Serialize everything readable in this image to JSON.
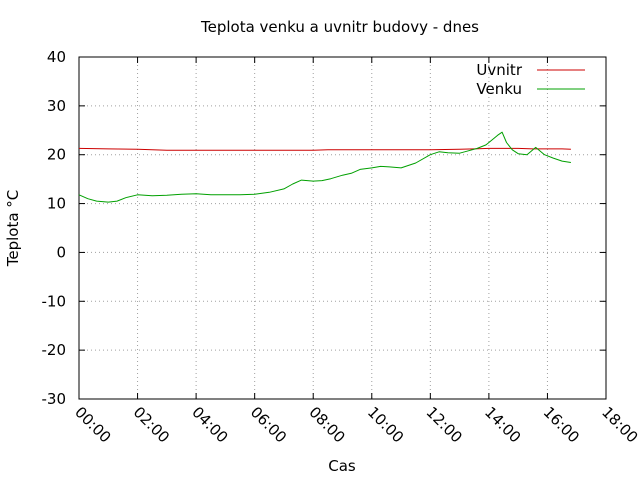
{
  "chart_data": {
    "type": "line",
    "title": "Teplota venku a uvnitr budovy - dnes",
    "xlabel": "Cas",
    "ylabel": "Teplota °C",
    "x_unit": "hours",
    "xlim": [
      0,
      18
    ],
    "ylim": [
      -30,
      40
    ],
    "x_ticks": [
      0,
      2,
      4,
      6,
      8,
      10,
      12,
      14,
      16,
      18
    ],
    "x_tick_labels": [
      "00:00",
      "02:00",
      "04:00",
      "06:00",
      "08:00",
      "10:00",
      "12:00",
      "14:00",
      "16:00",
      "18:00"
    ],
    "y_ticks": [
      -30,
      -20,
      -10,
      0,
      10,
      20,
      30,
      40
    ],
    "y_tick_labels": [
      "-30",
      "-20",
      "-10",
      "0",
      "10",
      "20",
      "30",
      "40"
    ],
    "grid": true,
    "legend_position": "top-right",
    "series": [
      {
        "name": "Uvnitr",
        "color": "#cc0000",
        "x": [
          0,
          1,
          2,
          2.5,
          3,
          4,
          5,
          6,
          7,
          8,
          8.5,
          9,
          10,
          11,
          12,
          13,
          13.5,
          14,
          14.5,
          15,
          15.5,
          16,
          16.5,
          16.8
        ],
        "y": [
          21.3,
          21.2,
          21.1,
          21.0,
          20.9,
          20.9,
          20.9,
          20.9,
          20.9,
          20.9,
          21.0,
          21.0,
          21.0,
          21.0,
          21.0,
          21.1,
          21.2,
          21.3,
          21.3,
          21.3,
          21.2,
          21.2,
          21.2,
          21.1
        ]
      },
      {
        "name": "Venku",
        "color": "#00a000",
        "x": [
          0,
          0.3,
          0.6,
          1.0,
          1.3,
          1.6,
          2.0,
          2.5,
          3.0,
          3.5,
          4.0,
          4.5,
          5.0,
          5.5,
          6.0,
          6.5,
          7.0,
          7.3,
          7.6,
          8.0,
          8.3,
          8.6,
          9.0,
          9.3,
          9.6,
          10.0,
          10.3,
          10.6,
          11.0,
          11.5,
          12.0,
          12.3,
          12.6,
          13.0,
          13.3,
          13.6,
          13.9,
          14.1,
          14.3,
          14.45,
          14.6,
          14.8,
          15.0,
          15.3,
          15.6,
          15.9,
          16.2,
          16.5,
          16.8
        ],
        "y": [
          11.8,
          11.0,
          10.5,
          10.3,
          10.5,
          11.2,
          11.8,
          11.6,
          11.7,
          11.9,
          12.0,
          11.8,
          11.8,
          11.8,
          11.9,
          12.3,
          13.0,
          14.0,
          14.8,
          14.6,
          14.7,
          15.1,
          15.8,
          16.2,
          17.0,
          17.3,
          17.6,
          17.5,
          17.3,
          18.3,
          20.0,
          20.6,
          20.4,
          20.3,
          20.8,
          21.3,
          22.0,
          23.0,
          24.0,
          24.6,
          22.5,
          21.0,
          20.2,
          20.0,
          21.5,
          20.0,
          19.3,
          18.7,
          18.4
        ]
      }
    ]
  }
}
